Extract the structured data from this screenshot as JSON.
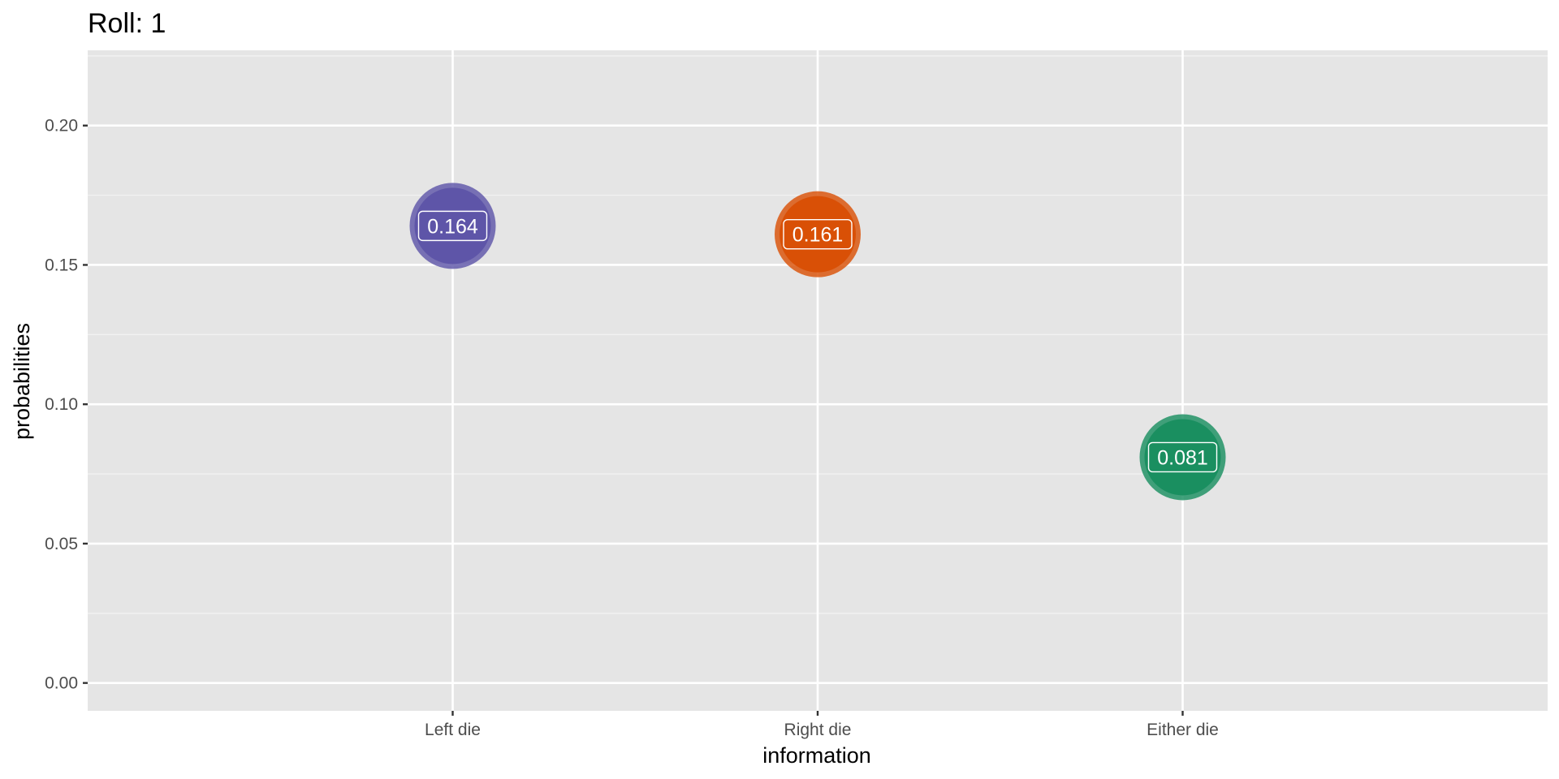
{
  "chart_data": {
    "type": "scatter",
    "title": "Roll: 1",
    "xlabel": "information",
    "ylabel": "probabilities",
    "categories": [
      "Left die",
      "Right die",
      "Either die"
    ],
    "values": [
      0.164,
      0.161,
      0.081
    ],
    "labels": [
      "0.164",
      "0.161",
      "0.081"
    ],
    "colors": [
      "#5e55a8",
      "#d95006",
      "#1a8f60"
    ],
    "ylim": [
      -0.01,
      0.227
    ],
    "yticks": [
      0.0,
      0.05,
      0.1,
      0.15,
      0.2
    ],
    "ytick_labels": [
      "0.00",
      "0.05",
      "0.10",
      "0.15",
      "0.20"
    ],
    "grid": true,
    "legend": "none",
    "panel_background": "#e5e5e5"
  }
}
